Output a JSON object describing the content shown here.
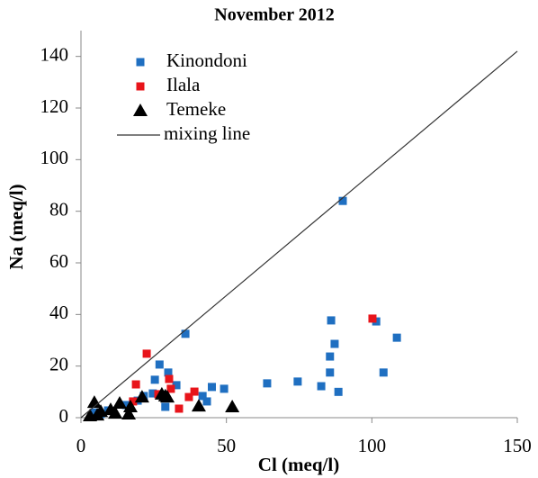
{
  "chart_data": {
    "type": "scatter",
    "title": "November 2012",
    "x_label": "Cl (meq/l)",
    "y_label": "Na (meq/l)",
    "xlim": [
      0,
      150
    ],
    "ylim": [
      0,
      150
    ],
    "xticks": [
      0,
      50,
      100,
      150
    ],
    "yticks": [
      0,
      20,
      40,
      60,
      80,
      100,
      120,
      140
    ],
    "legend": "top-left",
    "series": [
      {
        "name": "Kinondoni",
        "color": "#1f6fc1",
        "marker": "square",
        "x": [
          90,
          35.9,
          86,
          87.2,
          85.6,
          101.5,
          108.6,
          104,
          85.6,
          74.5,
          64,
          82.6,
          88.5,
          49.2,
          45,
          43.3,
          27,
          25.4,
          30,
          32.8,
          29,
          24.7,
          19.5,
          4.6,
          6.8,
          9.3,
          15.5,
          21.6,
          41.8
        ],
        "values": [
          84,
          32.5,
          37.7,
          28.6,
          23.7,
          37.3,
          31,
          17.5,
          17.5,
          14,
          13.3,
          12.2,
          10,
          11.2,
          11.9,
          6.3,
          20.6,
          14.7,
          17.5,
          12.6,
          4.2,
          9.4,
          6.6,
          2,
          1.4,
          2.8,
          4.9,
          8.4,
          8.4
        ]
      },
      {
        "name": "Ilala",
        "color": "#e8141a",
        "marker": "square",
        "x": [
          22.6,
          100.2,
          18.9,
          30.3,
          30.9,
          39,
          37.1,
          33.7,
          17.9,
          26.6
        ],
        "values": [
          24.8,
          38.4,
          12.9,
          15,
          11.2,
          10.1,
          8,
          3.5,
          6.3,
          9.1
        ]
      },
      {
        "name": "Temeke",
        "color": "#000000",
        "marker": "triangle",
        "x": [
          4.6,
          52,
          40.5,
          29,
          21,
          27.8,
          17,
          13.3,
          10.2,
          6.8,
          3.1,
          16.4,
          11.8,
          5.6,
          29.7
        ],
        "values": [
          5.9,
          4.2,
          4.5,
          8.4,
          8,
          9.1,
          4.2,
          5.6,
          3.1,
          2.4,
          0.7,
          1.4,
          1.7,
          1,
          8
        ]
      },
      {
        "name": "mixing line",
        "color": "#333333",
        "marker": "line",
        "x": [
          0,
          150
        ],
        "values": [
          0,
          142
        ]
      }
    ]
  }
}
